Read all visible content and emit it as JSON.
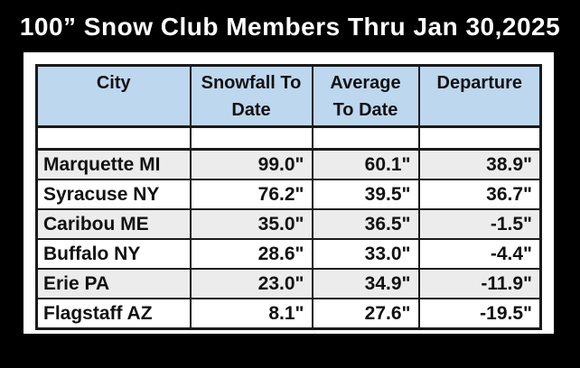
{
  "chart_data": {
    "type": "table",
    "title": "100” Snow Club Members Thru Jan 30,2025",
    "columns": [
      "City",
      "Snowfall To Date",
      "Average To Date",
      "Departure"
    ],
    "rows": [
      [
        "Marquette MI",
        "99.0\"",
        "60.1\"",
        "38.9\""
      ],
      [
        "Syracuse NY",
        "76.2\"",
        "39.5\"",
        "36.7\""
      ],
      [
        "Caribou ME",
        "35.0\"",
        "36.5\"",
        "-1.5\""
      ],
      [
        "Buffalo NY",
        "28.6\"",
        "33.0\"",
        "-4.4\""
      ],
      [
        "Erie PA",
        "23.0\"",
        "34.9\"",
        "-11.9\""
      ],
      [
        "Flagstaff AZ",
        "8.1\"",
        "27.6\"",
        "-19.5\""
      ]
    ],
    "layout": {
      "row_banding": [
        "gray",
        "white",
        "gray",
        "white",
        "gray",
        "white"
      ],
      "empty_row_below_header": true
    }
  },
  "ui": {
    "header_lines": [
      [
        "City",
        ""
      ],
      [
        "Snowfall To",
        "Date"
      ],
      [
        "Average",
        "To Date"
      ],
      [
        "Departure",
        ""
      ]
    ]
  },
  "colors": {
    "page_bg": "#000000",
    "panel_bg": "#ffffff",
    "header_bg": "#bdd7ee",
    "alt_row_bg": "#ececec",
    "border": "#1a1a1a",
    "title_color": "#ffffff",
    "text_color": "#111111"
  }
}
